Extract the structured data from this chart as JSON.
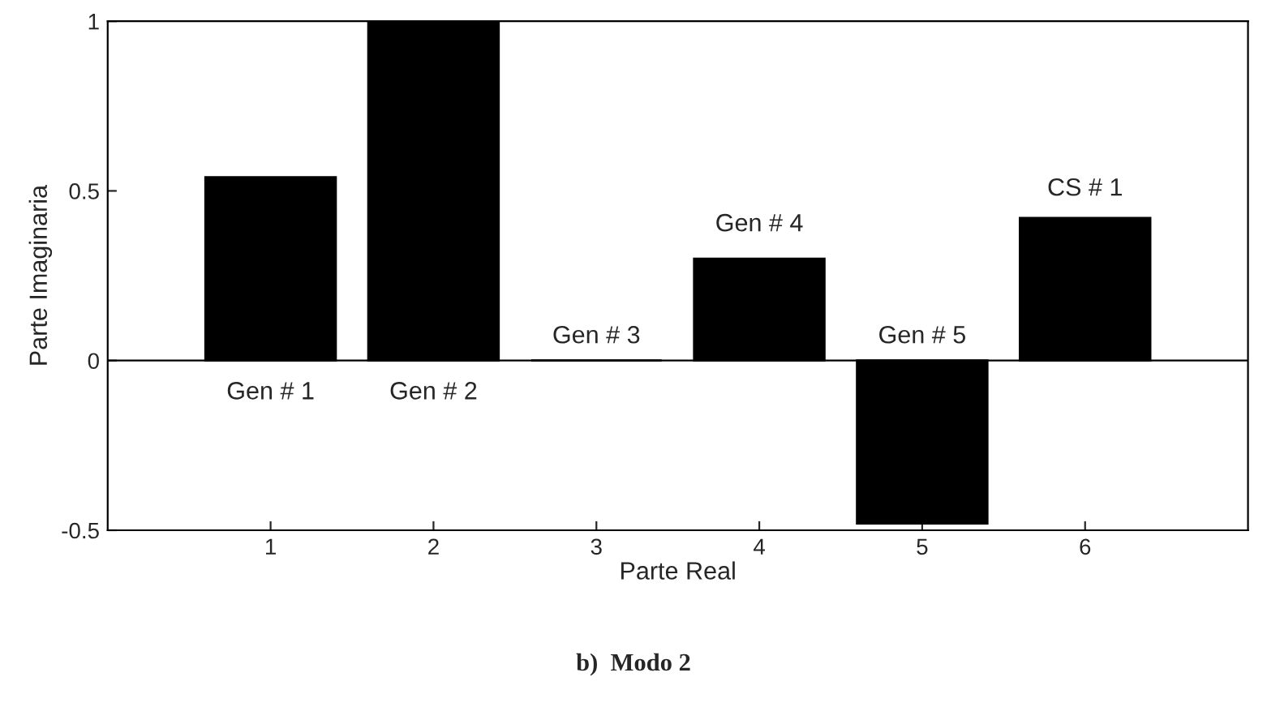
{
  "chart_data": {
    "type": "bar",
    "title": "b)  Modo 2",
    "xlabel": "Parte Real",
    "ylabel": "Parte Imaginaria",
    "x": [
      1,
      2,
      3,
      4,
      5,
      6
    ],
    "values": [
      0.54,
      1.0,
      0.0,
      0.3,
      -0.48,
      0.42
    ],
    "color": "#000000",
    "xlim": [
      0,
      7
    ],
    "xticks": [
      1,
      2,
      3,
      4,
      5,
      6
    ],
    "ylim": [
      -0.5,
      1
    ],
    "yticks": [
      -0.5,
      0,
      0.5,
      1
    ],
    "grid": false,
    "annotations": [
      "Gen # 1",
      "Gen # 2",
      "Gen # 3",
      "Gen # 4",
      "Gen # 5",
      "CS # 1"
    ],
    "ref_lines": [
      {
        "axis": "y",
        "value": 0,
        "color": "#000000"
      }
    ]
  }
}
